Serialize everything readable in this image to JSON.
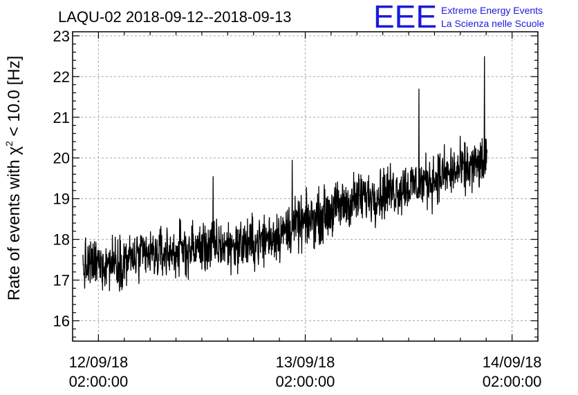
{
  "chart_data": {
    "type": "line",
    "title": "LAQU-02 2018-09-12--2018-09-13",
    "ylabel_prefix": "Rate of events with ",
    "ylabel_chi": "χ",
    "ylabel_sup": "2",
    "ylabel_suffix": " < 10.0 [Hz]",
    "xlabel": "",
    "ylim": [
      15.5,
      23.1
    ],
    "yticks": [
      16,
      17,
      18,
      19,
      20,
      21,
      22,
      23
    ],
    "xlim_hours": [
      -3,
      51
    ],
    "xticks": [
      {
        "date": "12/09/18",
        "time": "02:00:00",
        "hour": 0
      },
      {
        "date": "13/09/18",
        "time": "02:00:00",
        "hour": 24
      },
      {
        "date": "14/09/18",
        "time": "02:00:00",
        "hour": 48
      }
    ],
    "grid": true,
    "series": [
      {
        "color": "#000000",
        "x_start_hour": -1.8,
        "x_end_hour": 45.1,
        "trend": [
          {
            "hour": -1.8,
            "value": 17.3
          },
          {
            "hour": 0,
            "value": 17.4
          },
          {
            "hour": 6,
            "value": 17.6
          },
          {
            "hour": 12,
            "value": 17.8
          },
          {
            "hour": 18,
            "value": 17.9
          },
          {
            "hour": 24,
            "value": 18.4
          },
          {
            "hour": 30,
            "value": 19.0
          },
          {
            "hour": 36,
            "value": 19.3
          },
          {
            "hour": 42,
            "value": 19.7
          },
          {
            "hour": 45.1,
            "value": 19.9
          }
        ],
        "noise_amplitude": 0.55,
        "peaks": [
          {
            "hour": 13.3,
            "value": 19.55
          },
          {
            "hour": 22.5,
            "value": 19.95
          },
          {
            "hour": 37.2,
            "value": 21.7
          },
          {
            "hour": 44.8,
            "value": 22.5
          }
        ]
      }
    ]
  },
  "logo": {
    "mark": "EEE",
    "line1": "Extreme Energy Events",
    "line2": "La Scienza nelle Scuole",
    "color": "#1a1adb"
  }
}
